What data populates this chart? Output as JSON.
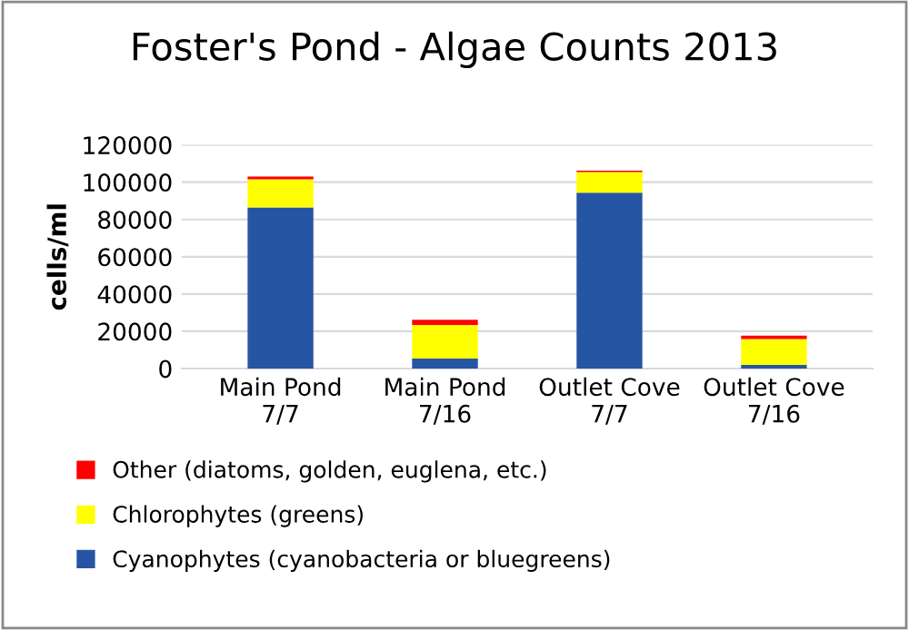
{
  "chart_data": {
    "type": "bar",
    "title": "Foster's Pond - Algae Counts 2013",
    "ylabel": "cells/ml",
    "categories": [
      "Main Pond\n7/7",
      "Main Pond\n7/16",
      "Outlet Cove\n7/7",
      "Outlet Cove\n7/16"
    ],
    "stacked": true,
    "series": [
      {
        "name": "Cyanophytes (cyanobacteria or bluegreens)",
        "color": "#2655a3",
        "values": [
          86500,
          5400,
          94400,
          2000
        ]
      },
      {
        "name": "Chlorophytes (greens)",
        "color": "#ffff00",
        "values": [
          15000,
          18000,
          11000,
          13800
        ]
      },
      {
        "name": "Other (diatoms, golden, euglena, etc.)",
        "color": "#ff0000",
        "values": [
          1500,
          2800,
          800,
          1900
        ]
      }
    ],
    "ylim": [
      0,
      120000
    ],
    "yticks": [
      0,
      20000,
      40000,
      60000,
      80000,
      100000,
      120000
    ],
    "grid": "y",
    "legend": "bottom"
  }
}
